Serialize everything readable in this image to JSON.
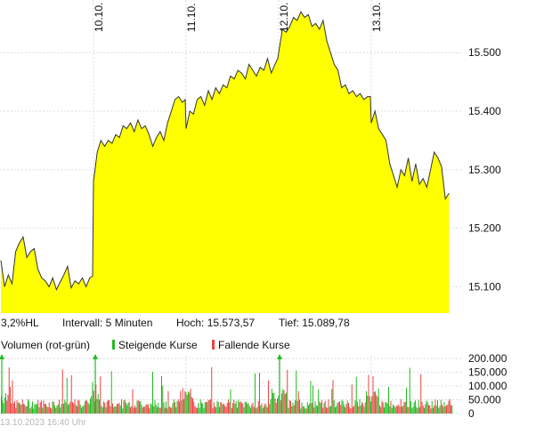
{
  "chart_data": [
    {
      "type": "area",
      "x_tick_labels": [
        "10.10.",
        "11.10.",
        "12.10.",
        "13.10."
      ],
      "y_ticks": [
        15100,
        15200,
        15300,
        15400,
        15500
      ],
      "y_tick_labels": [
        "15.100",
        "15.200",
        "15.300",
        "15.400",
        "15.500"
      ],
      "ylim": [
        15055,
        15590
      ],
      "grid": true,
      "fill_color": "#ffff00",
      "line_color": "#333333",
      "x_unit": "trading days (0 = start of 10.10.)",
      "x": [
        -1.0,
        -0.96,
        -0.92,
        -0.88,
        -0.84,
        -0.8,
        -0.76,
        -0.72,
        -0.68,
        -0.64,
        -0.6,
        -0.56,
        -0.52,
        -0.48,
        -0.44,
        -0.4,
        -0.36,
        -0.32,
        -0.28,
        -0.24,
        -0.2,
        -0.16,
        -0.12,
        -0.08,
        -0.04,
        -0.01,
        0.0,
        0.04,
        0.08,
        0.12,
        0.16,
        0.2,
        0.24,
        0.28,
        0.32,
        0.36,
        0.4,
        0.44,
        0.48,
        0.52,
        0.56,
        0.6,
        0.64,
        0.68,
        0.72,
        0.76,
        0.8,
        0.84,
        0.88,
        0.92,
        0.96,
        0.99,
        1.0,
        1.04,
        1.08,
        1.12,
        1.16,
        1.2,
        1.24,
        1.28,
        1.32,
        1.36,
        1.4,
        1.44,
        1.48,
        1.52,
        1.56,
        1.6,
        1.64,
        1.68,
        1.72,
        1.76,
        1.8,
        1.84,
        1.88,
        1.92,
        1.96,
        1.99,
        2.0,
        2.04,
        2.08,
        2.12,
        2.16,
        2.2,
        2.24,
        2.28,
        2.32,
        2.36,
        2.4,
        2.44,
        2.48,
        2.52,
        2.56,
        2.6,
        2.64,
        2.68,
        2.72,
        2.76,
        2.8,
        2.84,
        2.88,
        2.92,
        2.96,
        2.99,
        3.0,
        3.04,
        3.08,
        3.12,
        3.16,
        3.2,
        3.24,
        3.28,
        3.32,
        3.36,
        3.4,
        3.44,
        3.48,
        3.52,
        3.56,
        3.6,
        3.64,
        3.68,
        3.72,
        3.76,
        3.8,
        3.84
      ],
      "values": [
        15145,
        15100,
        15120,
        15105,
        15160,
        15175,
        15185,
        15150,
        15160,
        15165,
        15130,
        15115,
        15110,
        15100,
        15115,
        15095,
        15108,
        15120,
        15135,
        15098,
        15110,
        15105,
        15115,
        15100,
        15115,
        15118,
        15280,
        15330,
        15350,
        15340,
        15350,
        15345,
        15360,
        15355,
        15375,
        15370,
        15380,
        15365,
        15385,
        15370,
        15375,
        15360,
        15340,
        15355,
        15365,
        15350,
        15380,
        15400,
        15420,
        15425,
        15415,
        15420,
        15370,
        15400,
        15395,
        15420,
        15425,
        15410,
        15435,
        15420,
        15440,
        15430,
        15445,
        15440,
        15460,
        15455,
        15470,
        15465,
        15455,
        15480,
        15470,
        15460,
        15475,
        15470,
        15490,
        15465,
        15480,
        15490,
        15500,
        15540,
        15535,
        15545,
        15560,
        15555,
        15570,
        15560,
        15565,
        15545,
        15550,
        15540,
        15555,
        15520,
        15500,
        15480,
        15470,
        15440,
        15445,
        15430,
        15435,
        15425,
        15430,
        15420,
        15425,
        15425,
        15380,
        15400,
        15370,
        15360,
        15350,
        15310,
        15290,
        15270,
        15300,
        15290,
        15320,
        15280,
        15310,
        15275,
        15285,
        15270,
        15300,
        15330,
        15320,
        15305,
        15250,
        15260
      ]
    },
    {
      "type": "bar",
      "title": "Volumen (rot-grün)",
      "legend": [
        "Steigende Kurse",
        "Fallende Kurse"
      ],
      "rising_color": "#22bb22",
      "falling_color": "#ee4444",
      "y_ticks": [
        0,
        50000,
        100000,
        150000,
        200000
      ],
      "y_tick_labels": [
        "0",
        "50.000",
        "100.000",
        "150.000",
        "200.000"
      ],
      "ylim": [
        0,
        210000
      ],
      "peak_markers": [
        -0.99,
        0.02,
        2.01
      ]
    }
  ],
  "info": {
    "hl": "3,2%HL",
    "interval": "Intervall: 5 Minuten",
    "high_label": "Hoch:",
    "high_value": "15.573,57",
    "low_label": "Tief:",
    "low_value": "15.089,78"
  },
  "footer": "13.10.2023 16:40 Uhr"
}
